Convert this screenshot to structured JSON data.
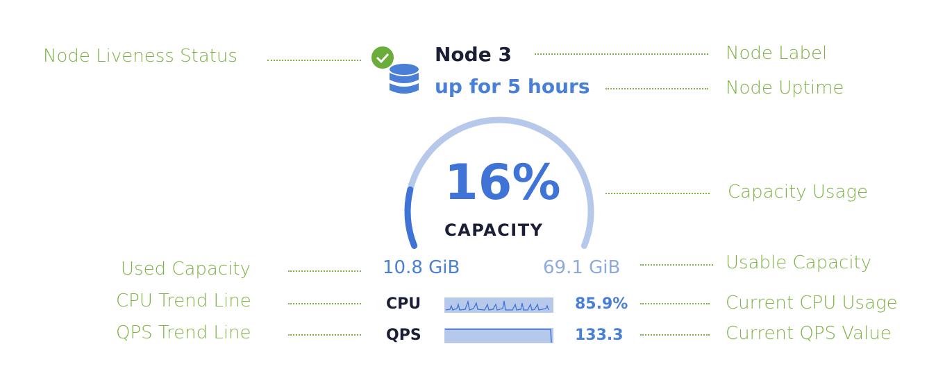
{
  "annotations": {
    "liveness": "Node Liveness Status",
    "label": "Node Label",
    "uptime": "Node Uptime",
    "capacity_usage": "Capacity Usage",
    "used_capacity": "Used Capacity",
    "usable_capacity": "Usable Capacity",
    "cpu_trend": "CPU Trend Line",
    "current_cpu": "Current CPU Usage",
    "qps_trend": "QPS Trend Line",
    "current_qps": "Current QPS Value"
  },
  "node": {
    "title": "Node 3",
    "uptime": "up for 5 hours",
    "status_icon": "check-circle-icon",
    "node_icon": "database-icon",
    "status_color": "#6aad3a"
  },
  "capacity": {
    "percent_label": "16%",
    "percent": 16,
    "caption": "CAPACITY",
    "used": "10.8 GiB",
    "usable": "69.1 GiB"
  },
  "metrics": {
    "cpu": {
      "label": "CPU",
      "value": "85.9%"
    },
    "qps": {
      "label": "QPS",
      "value": "133.3"
    }
  },
  "colors": {
    "annotation": "#7cb342",
    "accent": "#3f74d6",
    "track": "#b7c9ea"
  }
}
